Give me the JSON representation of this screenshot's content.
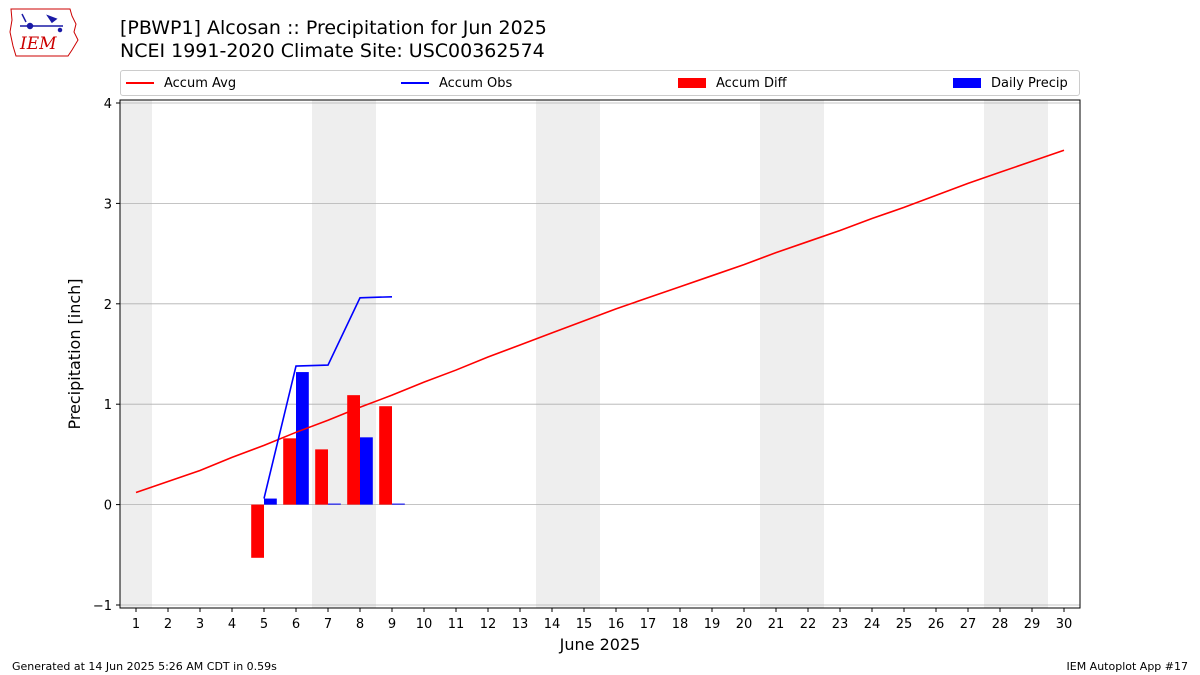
{
  "header": {
    "logo_text": "IEM",
    "title_line1": "[PBWP1] Alcosan :: Precipitation for Jun 2025",
    "title_line2": "NCEI 1991-2020 Climate Site: USC00362574"
  },
  "legend": [
    {
      "label": "Accum Avg",
      "kind": "line",
      "color": "#ff0000"
    },
    {
      "label": "Accum Obs",
      "kind": "line",
      "color": "#0000ff"
    },
    {
      "label": "Accum Diff",
      "kind": "bar",
      "color": "#ff0000"
    },
    {
      "label": "Daily Precip",
      "kind": "bar",
      "color": "#0000ff"
    }
  ],
  "footer": {
    "left": "Generated at 14 Jun 2025 5:26 AM CDT in 0.59s",
    "right": "IEM Autoplot App #17"
  },
  "chart_data": {
    "type": "bar",
    "xlabel": "June 2025",
    "ylabel": "Precipitation [inch]",
    "ylim": [
      -1.03,
      4.03
    ],
    "xlim": [
      0.5,
      30.5
    ],
    "yticks": [
      -1,
      0,
      1,
      2,
      3,
      4
    ],
    "grid": "horizontal",
    "legend_position": "top",
    "weekend_shading": [
      [
        0.5,
        1.5
      ],
      [
        6.5,
        8.5
      ],
      [
        13.5,
        15.5
      ],
      [
        20.5,
        22.5
      ],
      [
        27.5,
        29.5
      ]
    ],
    "days": [
      1,
      2,
      3,
      4,
      5,
      6,
      7,
      8,
      9,
      10,
      11,
      12,
      13,
      14,
      15,
      16,
      17,
      18,
      19,
      20,
      21,
      22,
      23,
      24,
      25,
      26,
      27,
      28,
      29,
      30
    ],
    "series": [
      {
        "name": "Accum Avg",
        "kind": "line",
        "color": "#ff0000",
        "x": [
          1,
          2,
          3,
          4,
          5,
          6,
          7,
          8,
          9,
          10,
          11,
          12,
          13,
          14,
          15,
          16,
          17,
          18,
          19,
          20,
          21,
          22,
          23,
          24,
          25,
          26,
          27,
          28,
          29,
          30
        ],
        "values": [
          0.12,
          0.23,
          0.34,
          0.47,
          0.59,
          0.72,
          0.84,
          0.97,
          1.09,
          1.22,
          1.34,
          1.47,
          1.59,
          1.71,
          1.83,
          1.95,
          2.06,
          2.17,
          2.28,
          2.39,
          2.51,
          2.62,
          2.73,
          2.85,
          2.96,
          3.08,
          3.2,
          3.31,
          3.42,
          3.53
        ]
      },
      {
        "name": "Accum Obs",
        "kind": "line",
        "color": "#0000ff",
        "x": [
          5,
          6,
          7,
          8,
          9
        ],
        "values": [
          0.06,
          1.38,
          1.39,
          2.06,
          2.07
        ]
      },
      {
        "name": "Accum Diff",
        "kind": "bar",
        "color": "#ff0000",
        "x": [
          5,
          6,
          7,
          8,
          9
        ],
        "values": [
          -0.53,
          0.66,
          0.55,
          1.09,
          0.98
        ]
      },
      {
        "name": "Daily Precip",
        "kind": "bar",
        "color": "#0000ff",
        "x": [
          5,
          6,
          7,
          8,
          9
        ],
        "values": [
          0.06,
          1.32,
          0.01,
          0.67,
          0.01
        ]
      }
    ]
  }
}
